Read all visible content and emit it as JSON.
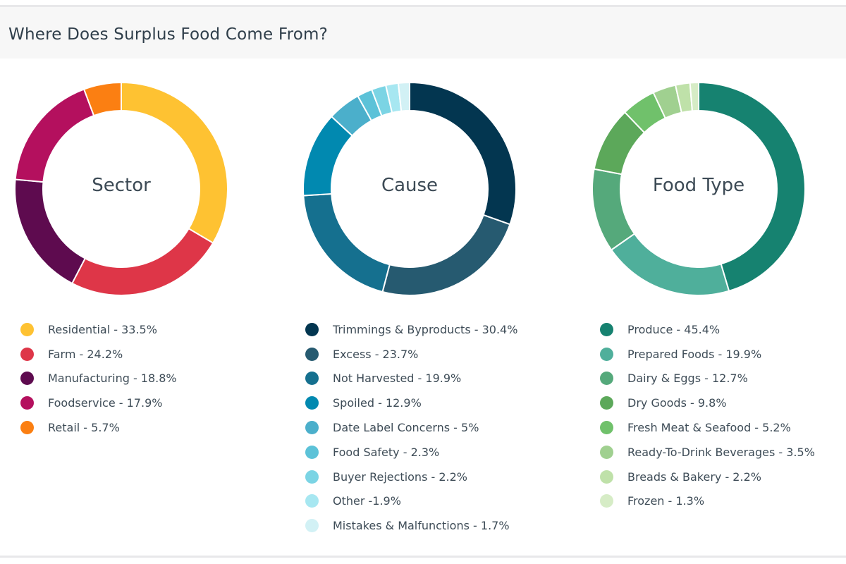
{
  "title": "Where Does Surplus Food Come From?",
  "chart_data": [
    {
      "type": "pie",
      "title": "Sector",
      "categories": [
        "Residential",
        "Farm",
        "Manufacturing",
        "Foodservice",
        "Retail"
      ],
      "values": [
        33.5,
        24.2,
        18.8,
        17.9,
        5.7
      ],
      "labels": [
        "Residential - 33.5%",
        "Farm - 24.2%",
        "Manufacturing - 18.8%",
        "Foodservice - 17.9%",
        "Retail - 5.7%"
      ],
      "colors": [
        "#FEC232",
        "#DE3648",
        "#5E0B4F",
        "#B4105E",
        "#FB7F12"
      ]
    },
    {
      "type": "pie",
      "title": "Cause",
      "categories": [
        "Trimmings & Byproducts",
        "Excess",
        "Not Harvested",
        "Spoiled",
        "Date Label Concerns",
        "Food Safety",
        "Buyer Rejections",
        "Other",
        "Mistakes & Malfunctions"
      ],
      "values": [
        30.4,
        23.7,
        19.9,
        12.9,
        5,
        2.3,
        2.2,
        1.9,
        1.7
      ],
      "labels": [
        "Trimmings & Byproducts - 30.4%",
        "Excess - 23.7%",
        "Not Harvested - 19.9%",
        "Spoiled - 12.9%",
        "Date Label Concerns - 5%",
        "Food Safety - 2.3%",
        "Buyer Rejections - 2.2%",
        "Other -1.9%",
        "Mistakes & Malfunctions - 1.7%"
      ],
      "colors": [
        "#033650",
        "#265A70",
        "#15708F",
        "#0189B0",
        "#4BAFCB",
        "#5CC2D8",
        "#7BD4E4",
        "#A7E7F1",
        "#D2F1F5"
      ]
    },
    {
      "type": "pie",
      "title": "Food Type",
      "categories": [
        "Produce",
        "Prepared Foods",
        "Dairy & Eggs",
        "Dry Goods",
        "Fresh Meat & Seafood",
        "Ready-To-Drink Beverages",
        "Breads & Bakery",
        "Frozen"
      ],
      "values": [
        45.4,
        19.9,
        12.7,
        9.8,
        5.2,
        3.5,
        2.2,
        1.3
      ],
      "labels": [
        "Produce - 45.4%",
        "Prepared Foods - 19.9%",
        "Dairy & Eggs - 12.7%",
        "Dry Goods - 9.8%",
        "Fresh Meat & Seafood - 5.2%",
        "Ready-To-Drink Beverages - 3.5%",
        "Breads & Bakery - 2.2%",
        "Frozen - 1.3%"
      ],
      "colors": [
        "#168270",
        "#4FAF9B",
        "#55A97B",
        "#5CA85A",
        "#70C16B",
        "#A0D090",
        "#BFE1A9",
        "#D6ECC6"
      ]
    }
  ]
}
